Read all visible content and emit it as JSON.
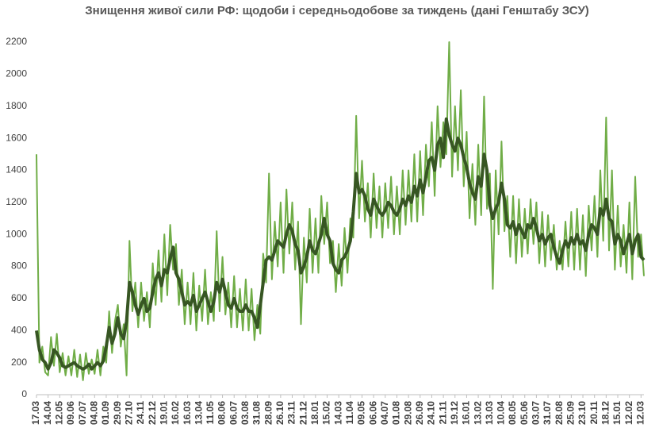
{
  "chart_data": {
    "type": "line",
    "title": "Знищення живої сили РФ: щодоби і середньодобове за тиждень (дані Генштабу ЗСУ)",
    "categories": [
      "17.03",
      null,
      null,
      null,
      "14.04",
      null,
      null,
      null,
      "12.05",
      null,
      null,
      null,
      "09.06",
      null,
      null,
      null,
      "07.07",
      null,
      null,
      null,
      "04.08",
      null,
      null,
      null,
      "01.09",
      null,
      null,
      null,
      "29.09",
      null,
      null,
      null,
      "27.10",
      null,
      null,
      null,
      "24.11",
      null,
      null,
      null,
      "22.12",
      null,
      null,
      null,
      "19.01",
      null,
      null,
      null,
      "16.02",
      null,
      null,
      null,
      "16.03",
      null,
      null,
      null,
      "13.04",
      null,
      null,
      null,
      "11.05",
      null,
      null,
      null,
      "08.06",
      null,
      null,
      null,
      "06.07",
      null,
      null,
      null,
      "03.08",
      null,
      null,
      null,
      "31.08",
      null,
      null,
      null,
      "28.09",
      null,
      null,
      null,
      "26.10",
      null,
      null,
      null,
      "23.11",
      null,
      null,
      null,
      "21.12",
      null,
      null,
      null,
      "18.01",
      null,
      null,
      null,
      "15.02",
      null,
      null,
      null,
      "14.03",
      null,
      null,
      null,
      "11.04",
      null,
      null,
      null,
      "09.05",
      null,
      null,
      null,
      "06.06",
      null,
      null,
      null,
      "04.07",
      null,
      null,
      null,
      "01.08",
      null,
      null,
      null,
      "29.08",
      null,
      null,
      null,
      "26.09",
      null,
      null,
      null,
      "24.10",
      null,
      null,
      null,
      "21.11",
      null,
      null,
      null,
      "19.12",
      null,
      null,
      null,
      "16.01",
      null,
      null,
      null,
      "13.02",
      null,
      null,
      null,
      "13.03",
      null,
      null,
      null,
      "10.04",
      null,
      null,
      null,
      "08.05",
      null,
      null,
      null,
      "05.06",
      null,
      null,
      null,
      "03.07",
      null,
      null,
      null,
      "31.07",
      null,
      null,
      null,
      "28.08",
      null,
      null,
      null,
      "25.09",
      null,
      null,
      null,
      "23.10",
      null,
      null,
      null,
      "20.11",
      null,
      null,
      null,
      "18.12",
      null,
      null,
      null,
      "15.01",
      null,
      null,
      null,
      "12.02",
      null,
      null,
      null,
      "12.03",
      null
    ],
    "series": [
      {
        "color": "#70ad47",
        "width": 2,
        "values": [
          1500,
          200,
          300,
          140,
          120,
          360,
          180,
          380,
          140,
          260,
          120,
          240,
          120,
          280,
          110,
          250,
          90,
          260,
          130,
          220,
          130,
          280,
          120,
          300,
          200,
          520,
          260,
          460,
          560,
          300,
          440,
          120,
          960,
          520,
          700,
          420,
          700,
          460,
          640,
          420,
          820,
          560,
          900,
          580,
          1000,
          620,
          1060,
          780,
          940,
          560,
          780,
          440,
          700,
          440,
          760,
          400,
          680,
          460,
          780,
          440,
          640,
          460,
          1020,
          520,
          860,
          500,
          700,
          420,
          740,
          420,
          660,
          400,
          720,
          400,
          660,
          340,
          560,
          380,
          880,
          700,
          1380,
          720,
          1080,
          800,
          1200,
          760,
          1280,
          880,
          1200,
          780,
          1080,
          440,
          980,
          700,
          1160,
          760,
          1100,
          760,
          1240,
          940,
          1200,
          820,
          960,
          640,
          940,
          680,
          1040,
          760,
          1100,
          980,
          1740,
          1100,
          1460,
          1080,
          1320,
          980,
          1380,
          1040,
          1300,
          980,
          1320,
          1040,
          1360,
          1000,
          1300,
          1000,
          1400,
          1060,
          1400,
          1080,
          1500,
          1080,
          1520,
          1120,
          1560,
          1300,
          1700,
          1240,
          1800,
          1420,
          1700,
          1500,
          2200,
          1360,
          1800,
          1400,
          1900,
          1300,
          1640,
          1100,
          1440,
          1060,
          1560,
          1120,
          1860,
          1160,
          1380,
          660,
          1400,
          1000,
          1580,
          1020,
          1240,
          860,
          1240,
          820,
          1220,
          860,
          1160,
          880,
          1220,
          940,
          1200,
          820,
          1140,
          800,
          1120,
          840,
          1060,
          780,
          960,
          780,
          1080,
          800,
          1140,
          780,
          1160,
          780,
          1120,
          740,
          1180,
          900,
          1240,
          860,
          1400,
          960,
          1730,
          900,
          1400,
          780,
          1180,
          800,
          1060,
          760,
          1200,
          720,
          1360,
          860,
          1000,
          740
        ]
      },
      {
        "color": "#375623",
        "width": 4,
        "values": [
          400,
          280,
          220,
          200,
          160,
          200,
          280,
          260,
          230,
          180,
          170,
          180,
          190,
          200,
          180,
          170,
          160,
          170,
          190,
          160,
          180,
          200,
          180,
          210,
          300,
          420,
          320,
          380,
          480,
          380,
          350,
          460,
          700,
          640,
          560,
          500,
          560,
          600,
          520,
          540,
          640,
          720,
          760,
          680,
          780,
          760,
          850,
          920,
          760,
          720,
          640,
          560,
          580,
          560,
          620,
          520,
          560,
          600,
          640,
          580,
          520,
          580,
          700,
          640,
          720,
          640,
          560,
          540,
          600,
          540,
          520,
          520,
          560,
          520,
          520,
          480,
          420,
          560,
          700,
          840,
          860,
          840,
          900,
          960,
          940,
          920,
          1000,
          1060,
          1020,
          940,
          900,
          760,
          800,
          860,
          960,
          900,
          880,
          940,
          1000,
          1100,
          1000,
          960,
          820,
          780,
          760,
          840,
          860,
          900,
          960,
          1140,
          1380,
          1260,
          1280,
          1240,
          1160,
          1120,
          1220,
          1180,
          1140,
          1120,
          1150,
          1200,
          1180,
          1140,
          1120,
          1160,
          1220,
          1180,
          1240,
          1200,
          1300,
          1240,
          1340,
          1260,
          1360,
          1460,
          1480,
          1400,
          1560,
          1600,
          1480,
          1720,
          1620,
          1560,
          1520,
          1600,
          1560,
          1480,
          1420,
          1320,
          1260,
          1220,
          1360,
          1300,
          1500,
          1400,
          1180,
          1100,
          1160,
          1200,
          1320,
          1220,
          1060,
          1040,
          1080,
          1000,
          1060,
          1020,
          980,
          1060,
          1040,
          1100,
          1040,
          960,
          1000,
          940,
          980,
          1000,
          920,
          860,
          820,
          900,
          960,
          920,
          980,
          940,
          1000,
          940,
          960,
          900,
          1000,
          1060,
          1040,
          1000,
          1160,
          1120,
          1220,
          1100,
          1080,
          940,
          1000,
          960,
          880,
          940,
          1000,
          880,
          960,
          1000,
          860,
          840
        ]
      }
    ],
    "ylim": [
      0,
      2200
    ],
    "yticks": [
      0,
      200,
      400,
      600,
      800,
      1000,
      1200,
      1400,
      1600,
      1800,
      2000,
      2200
    ]
  }
}
